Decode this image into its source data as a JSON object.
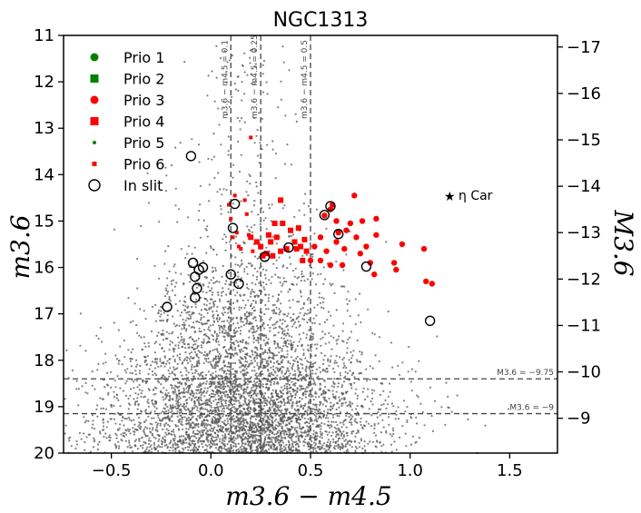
{
  "chart_data": {
    "type": "scatter",
    "title": "NGC1313",
    "xlabel": "m3.6 − m4.5",
    "ylabel": "m3.6",
    "ylabel_right": "M3.6",
    "xlim": [
      -0.74,
      1.74
    ],
    "ylim": [
      20,
      11
    ],
    "y2lim": [
      -8.25,
      -17.25
    ],
    "xticks": [
      "−0.5",
      "0.0",
      "0.5",
      "1.0",
      "1.5"
    ],
    "xtick_values": [
      -0.5,
      0.0,
      0.5,
      1.0,
      1.5
    ],
    "yticks": [
      "11",
      "12",
      "13",
      "14",
      "15",
      "16",
      "17",
      "18",
      "19",
      "20"
    ],
    "ytick_values": [
      11,
      12,
      13,
      14,
      15,
      16,
      17,
      18,
      19,
      20
    ],
    "y2ticks": [
      "−17",
      "−16",
      "−15",
      "−14",
      "−13",
      "−12",
      "−11",
      "−10",
      "−9"
    ],
    "y2tick_values": [
      -17,
      -16,
      -15,
      -14,
      -13,
      -12,
      -11,
      -10,
      -9
    ],
    "vlines": [
      {
        "x": 0.1,
        "label": "m3.6 − m4.5 = 0.1"
      },
      {
        "x": 0.25,
        "label": "m3.6 − m4.5 = 0.25"
      },
      {
        "x": 0.5,
        "label": "m3.6 − m4.5 = 0.5"
      }
    ],
    "hlines": [
      {
        "y": 18.4,
        "label": "M3.6 = −9.75"
      },
      {
        "y": 19.15,
        "label": "M3.6 = −9"
      }
    ],
    "legend": [
      {
        "label": "Prio 1",
        "marker": "circle",
        "color": "#008000"
      },
      {
        "label": "Prio 2",
        "marker": "square",
        "color": "#008000"
      },
      {
        "label": "Prio 3",
        "marker": "circle",
        "color": "#ff0000"
      },
      {
        "label": "Prio 4",
        "marker": "square",
        "color": "#ff0000"
      },
      {
        "label": "Prio 5",
        "marker": "dot",
        "color": "#008000"
      },
      {
        "label": "Prio 6",
        "marker": "smallsquare",
        "color": "#ff0000"
      },
      {
        "label": "In slit",
        "marker": "open-circle",
        "color": "#000000"
      }
    ],
    "annotation": {
      "label": "η Car",
      "x": 1.18,
      "y": 14.45
    },
    "background_points": {
      "count": 5000,
      "color": "#555555",
      "description": "field stars"
    },
    "series": [
      {
        "name": "Prio 3",
        "marker": "circle",
        "color": "#ff0000",
        "points": [
          [
            0.57,
            14.88
          ],
          [
            0.6,
            14.75
          ],
          [
            0.61,
            14.65
          ],
          [
            0.63,
            15.0
          ],
          [
            0.63,
            15.45
          ],
          [
            0.64,
            15.25
          ],
          [
            0.68,
            15.2
          ],
          [
            0.7,
            15.05
          ],
          [
            0.72,
            14.45
          ],
          [
            0.55,
            15.35
          ],
          [
            0.52,
            15.55
          ],
          [
            0.5,
            15.85
          ],
          [
            0.55,
            15.85
          ],
          [
            0.58,
            15.65
          ],
          [
            0.6,
            15.95
          ],
          [
            0.66,
            15.95
          ],
          [
            0.67,
            15.6
          ],
          [
            0.73,
            15.35
          ],
          [
            0.75,
            15.7
          ],
          [
            0.76,
            15.0
          ],
          [
            0.78,
            15.55
          ],
          [
            0.8,
            15.9
          ],
          [
            0.82,
            16.15
          ],
          [
            0.83,
            14.95
          ],
          [
            0.83,
            15.3
          ],
          [
            0.92,
            15.9
          ],
          [
            0.93,
            16.05
          ],
          [
            0.96,
            15.5
          ],
          [
            1.07,
            15.6
          ],
          [
            1.08,
            16.3
          ],
          [
            1.11,
            16.35
          ]
        ]
      },
      {
        "name": "Prio 4",
        "marker": "square",
        "color": "#ff0000",
        "points": [
          [
            0.35,
            14.55
          ],
          [
            0.32,
            15.05
          ],
          [
            0.33,
            15.35
          ],
          [
            0.35,
            15.65
          ],
          [
            0.36,
            15.05
          ],
          [
            0.38,
            15.6
          ],
          [
            0.4,
            15.2
          ],
          [
            0.42,
            15.45
          ],
          [
            0.43,
            15.6
          ],
          [
            0.44,
            15.15
          ],
          [
            0.45,
            15.55
          ],
          [
            0.46,
            15.85
          ],
          [
            0.47,
            15.4
          ],
          [
            0.48,
            15.65
          ],
          [
            0.3,
            15.45
          ],
          [
            0.28,
            15.7
          ],
          [
            0.25,
            15.55
          ],
          [
            0.26,
            15.75
          ],
          [
            0.31,
            15.75
          ],
          [
            0.23,
            15.45
          ],
          [
            0.2,
            15.35
          ],
          [
            0.29,
            15.3
          ]
        ]
      },
      {
        "name": "Prio 6",
        "marker": "smallsquare",
        "color": "#ff0000",
        "points": [
          [
            0.2,
            13.2
          ],
          [
            0.09,
            14.65
          ],
          [
            0.1,
            14.95
          ],
          [
            0.11,
            15.35
          ],
          [
            0.13,
            15.25
          ],
          [
            0.15,
            15.6
          ],
          [
            0.17,
            14.55
          ],
          [
            0.18,
            14.85
          ],
          [
            0.19,
            15.3
          ],
          [
            0.21,
            15.65
          ],
          [
            0.12,
            14.45
          ],
          [
            0.14,
            15.55
          ]
        ]
      },
      {
        "name": "In slit",
        "marker": "open-circle",
        "color": "#000000",
        "points": [
          [
            0.12,
            14.63
          ],
          [
            0.11,
            15.15
          ],
          [
            0.27,
            15.77
          ],
          [
            0.39,
            15.57
          ],
          [
            0.57,
            14.87
          ],
          [
            0.6,
            14.68
          ],
          [
            0.64,
            15.28
          ],
          [
            0.78,
            15.98
          ],
          [
            -0.1,
            13.6
          ],
          [
            -0.09,
            15.9
          ],
          [
            -0.06,
            16.05
          ],
          [
            -0.04,
            16.0
          ],
          [
            0.1,
            16.15
          ],
          [
            0.14,
            16.35
          ],
          [
            -0.08,
            16.2
          ],
          [
            -0.07,
            16.45
          ],
          [
            -0.08,
            16.65
          ],
          [
            -0.22,
            16.85
          ],
          [
            1.1,
            17.15
          ]
        ]
      }
    ]
  }
}
